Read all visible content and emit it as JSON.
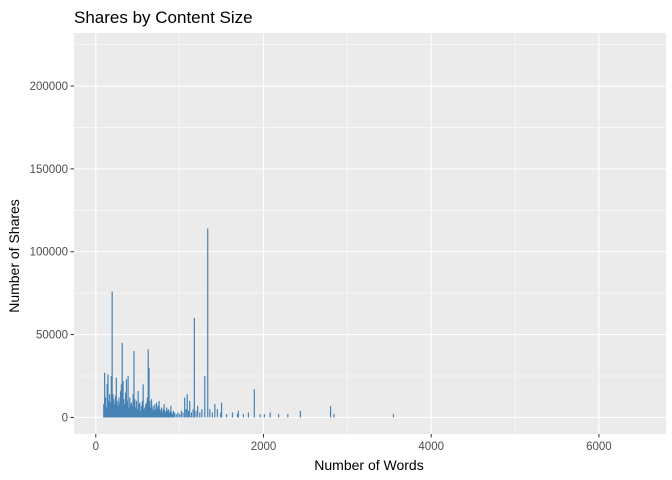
{
  "chart_data": {
    "type": "bar",
    "title": "Shares by Content Size",
    "xlabel": "Number of Words",
    "ylabel": "Number of Shares",
    "xlim": [
      -260,
      6800
    ],
    "ylim": [
      -10000,
      232000
    ],
    "x_ticks": [
      0,
      2000,
      4000,
      6000
    ],
    "x_tick_labels": [
      "0",
      "2000",
      "4000",
      "6000"
    ],
    "y_ticks": [
      0,
      50000,
      100000,
      150000,
      200000
    ],
    "y_tick_labels": [
      "0",
      "50000",
      "100000",
      "150000",
      "200000"
    ],
    "grid": true,
    "bar_color": "#4682B4",
    "panel_color": "#EBEBEB",
    "grid_color": "#FFFFFF",
    "points": [
      [
        95,
        8000
      ],
      [
        105,
        27000
      ],
      [
        115,
        12000
      ],
      [
        125,
        6000
      ],
      [
        135,
        20000
      ],
      [
        145,
        26000
      ],
      [
        155,
        10000
      ],
      [
        165,
        14000
      ],
      [
        175,
        9000
      ],
      [
        185,
        25000
      ],
      [
        195,
        76000
      ],
      [
        205,
        14000
      ],
      [
        215,
        11000
      ],
      [
        225,
        8000
      ],
      [
        235,
        13000
      ],
      [
        245,
        24000
      ],
      [
        255,
        10000
      ],
      [
        265,
        7000
      ],
      [
        275,
        12000
      ],
      [
        285,
        9000
      ],
      [
        295,
        16000
      ],
      [
        305,
        20000
      ],
      [
        315,
        45000
      ],
      [
        325,
        22000
      ],
      [
        335,
        11000
      ],
      [
        345,
        8000
      ],
      [
        355,
        15000
      ],
      [
        365,
        23000
      ],
      [
        375,
        10000
      ],
      [
        385,
        25000
      ],
      [
        395,
        6000
      ],
      [
        405,
        12000
      ],
      [
        415,
        8000
      ],
      [
        425,
        9000
      ],
      [
        435,
        7000
      ],
      [
        445,
        14000
      ],
      [
        455,
        40000
      ],
      [
        465,
        11000
      ],
      [
        475,
        6000
      ],
      [
        485,
        10000
      ],
      [
        495,
        5000
      ],
      [
        505,
        16000
      ],
      [
        515,
        8000
      ],
      [
        525,
        9000
      ],
      [
        535,
        4000
      ],
      [
        545,
        7000
      ],
      [
        555,
        10000
      ],
      [
        565,
        20000
      ],
      [
        575,
        5000
      ],
      [
        585,
        6000
      ],
      [
        595,
        8000
      ],
      [
        605,
        9000
      ],
      [
        615,
        12000
      ],
      [
        625,
        41000
      ],
      [
        635,
        30000
      ],
      [
        645,
        10000
      ],
      [
        655,
        6000
      ],
      [
        665,
        11000
      ],
      [
        675,
        5000
      ],
      [
        685,
        7000
      ],
      [
        695,
        4000
      ],
      [
        705,
        8000
      ],
      [
        715,
        5000
      ],
      [
        725,
        9000
      ],
      [
        735,
        6000
      ],
      [
        745,
        7000
      ],
      [
        755,
        10000
      ],
      [
        765,
        5000
      ],
      [
        775,
        4000
      ],
      [
        785,
        6000
      ],
      [
        795,
        3000
      ],
      [
        805,
        5000
      ],
      [
        815,
        8000
      ],
      [
        825,
        4000
      ],
      [
        835,
        3000
      ],
      [
        845,
        6000
      ],
      [
        855,
        4000
      ],
      [
        865,
        5000
      ],
      [
        875,
        3000
      ],
      [
        885,
        4000
      ],
      [
        895,
        7000
      ],
      [
        905,
        3000
      ],
      [
        915,
        2000
      ],
      [
        925,
        4000
      ],
      [
        940,
        3000
      ],
      [
        960,
        2000
      ],
      [
        980,
        3000
      ],
      [
        1000,
        2000
      ],
      [
        1020,
        4000
      ],
      [
        1040,
        3000
      ],
      [
        1060,
        12000
      ],
      [
        1075,
        5000
      ],
      [
        1090,
        14000
      ],
      [
        1105,
        4000
      ],
      [
        1120,
        10000
      ],
      [
        1140,
        3000
      ],
      [
        1160,
        5000
      ],
      [
        1175,
        60000
      ],
      [
        1195,
        4000
      ],
      [
        1215,
        7000
      ],
      [
        1240,
        3000
      ],
      [
        1265,
        5000
      ],
      [
        1300,
        25000
      ],
      [
        1335,
        114000
      ],
      [
        1360,
        5000
      ],
      [
        1390,
        3000
      ],
      [
        1420,
        8000
      ],
      [
        1450,
        5000
      ],
      [
        1490,
        3000
      ],
      [
        1500,
        9000
      ],
      [
        1560,
        2000
      ],
      [
        1630,
        3000
      ],
      [
        1690,
        2000
      ],
      [
        1700,
        4000
      ],
      [
        1760,
        2000
      ],
      [
        1820,
        3000
      ],
      [
        1890,
        17000
      ],
      [
        1960,
        2000
      ],
      [
        2010,
        2000
      ],
      [
        2080,
        3000
      ],
      [
        2180,
        2000
      ],
      [
        2290,
        2000
      ],
      [
        2440,
        4000
      ],
      [
        2800,
        7000
      ],
      [
        2840,
        2000
      ],
      [
        3550,
        2000
      ]
    ]
  }
}
